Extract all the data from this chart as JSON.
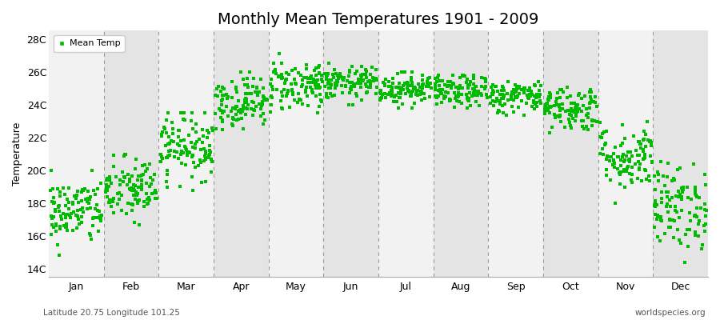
{
  "title": "Monthly Mean Temperatures 1901 - 2009",
  "ylabel": "Temperature",
  "xlabel": "",
  "subtitle": "Latitude 20.75 Longitude 101.25",
  "watermark": "worldspecies.org",
  "legend_label": "Mean Temp",
  "marker_color": "#00bb00",
  "band_colors": [
    "#f2f2f2",
    "#e4e4e4"
  ],
  "ylim": [
    13.5,
    28.5
  ],
  "yticks": [
    14,
    16,
    18,
    20,
    22,
    24,
    26,
    28
  ],
  "ytick_labels": [
    "14C",
    "16C",
    "18C",
    "20C",
    "22C",
    "24C",
    "26C",
    "28C"
  ],
  "months": [
    "Jan",
    "Feb",
    "Mar",
    "Apr",
    "May",
    "Jun",
    "Jul",
    "Aug",
    "Sep",
    "Oct",
    "Nov",
    "Dec"
  ],
  "num_years": 109,
  "seed": 42,
  "monthly_mean": [
    17.5,
    18.8,
    21.5,
    24.2,
    25.2,
    25.3,
    25.0,
    24.8,
    24.5,
    23.8,
    20.8,
    17.8
  ],
  "monthly_std": [
    1.0,
    1.0,
    1.0,
    0.8,
    0.8,
    0.5,
    0.5,
    0.5,
    0.5,
    0.7,
    1.0,
    1.3
  ],
  "monthly_min": [
    14.5,
    15.5,
    18.5,
    22.5,
    23.5,
    24.0,
    23.8,
    23.5,
    23.2,
    21.5,
    18.0,
    14.0
  ],
  "monthly_max": [
    20.0,
    21.5,
    23.5,
    26.0,
    27.5,
    26.8,
    26.0,
    25.8,
    25.5,
    25.5,
    23.5,
    21.0
  ],
  "title_fontsize": 14,
  "axis_fontsize": 9,
  "tick_fontsize": 9,
  "legend_fontsize": 8,
  "marker_size": 2.5
}
